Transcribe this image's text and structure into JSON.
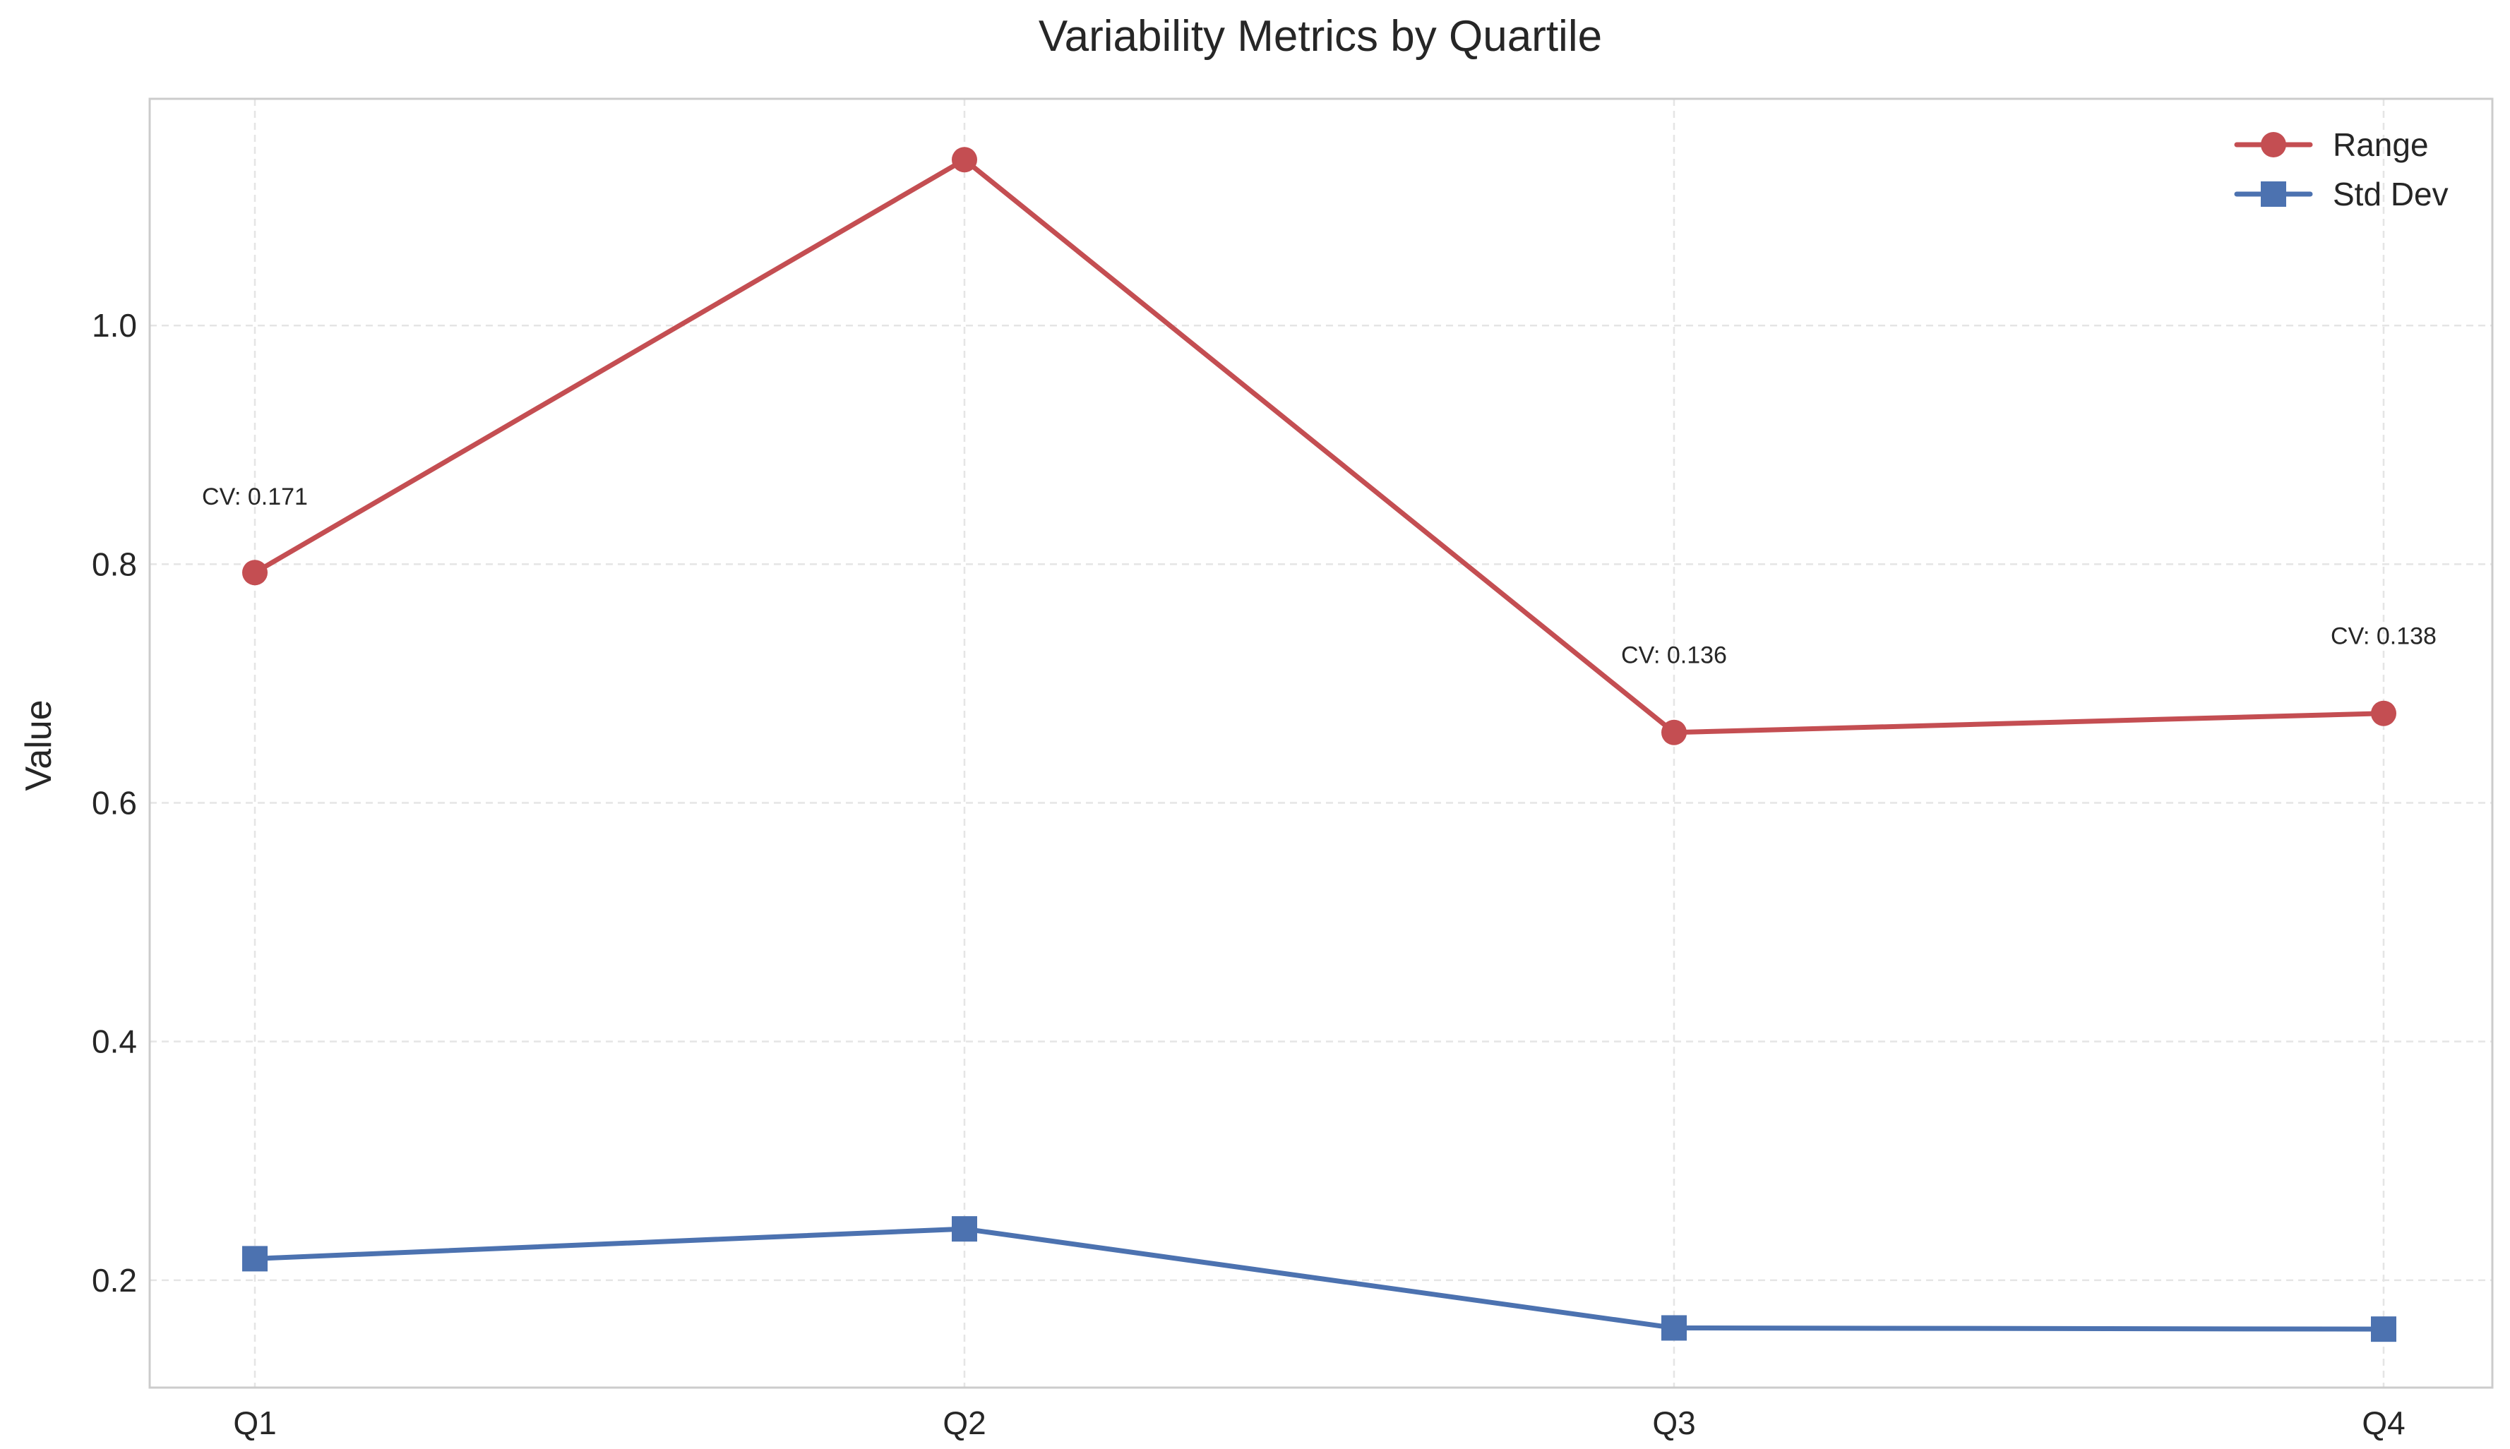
{
  "chart_data": {
    "type": "line",
    "title": "Variability Metrics by Quartile",
    "xlabel": "",
    "ylabel": "Value",
    "categories": [
      "Q1",
      "Q2",
      "Q3",
      "Q4"
    ],
    "ylim": [
      0.11,
      1.19
    ],
    "yticks": [
      0.2,
      0.4,
      0.6,
      0.8,
      1.0
    ],
    "ytick_labels": [
      "0.2",
      "0.4",
      "0.6",
      "0.8",
      "1.0"
    ],
    "grid": true,
    "legend_position": "top-right",
    "series": [
      {
        "name": "Range",
        "marker": "circle",
        "color": "#c44e52",
        "values": [
          0.793,
          1.139,
          0.659,
          0.675
        ]
      },
      {
        "name": "Std Dev",
        "marker": "square",
        "color": "#4c72b0",
        "values": [
          0.218,
          0.243,
          0.16,
          0.159
        ]
      }
    ],
    "annotations": [
      {
        "category": "Q1",
        "y": 0.85,
        "text": "CV: 0.171"
      },
      {
        "category": "Q3",
        "y": 0.717,
        "text": "CV: 0.136"
      },
      {
        "category": "Q4",
        "y": 0.733,
        "text": "CV: 0.138"
      }
    ],
    "colors": {
      "axes_border": "#cccccc",
      "grid": "#e5e5e5",
      "text": "#262626"
    }
  }
}
